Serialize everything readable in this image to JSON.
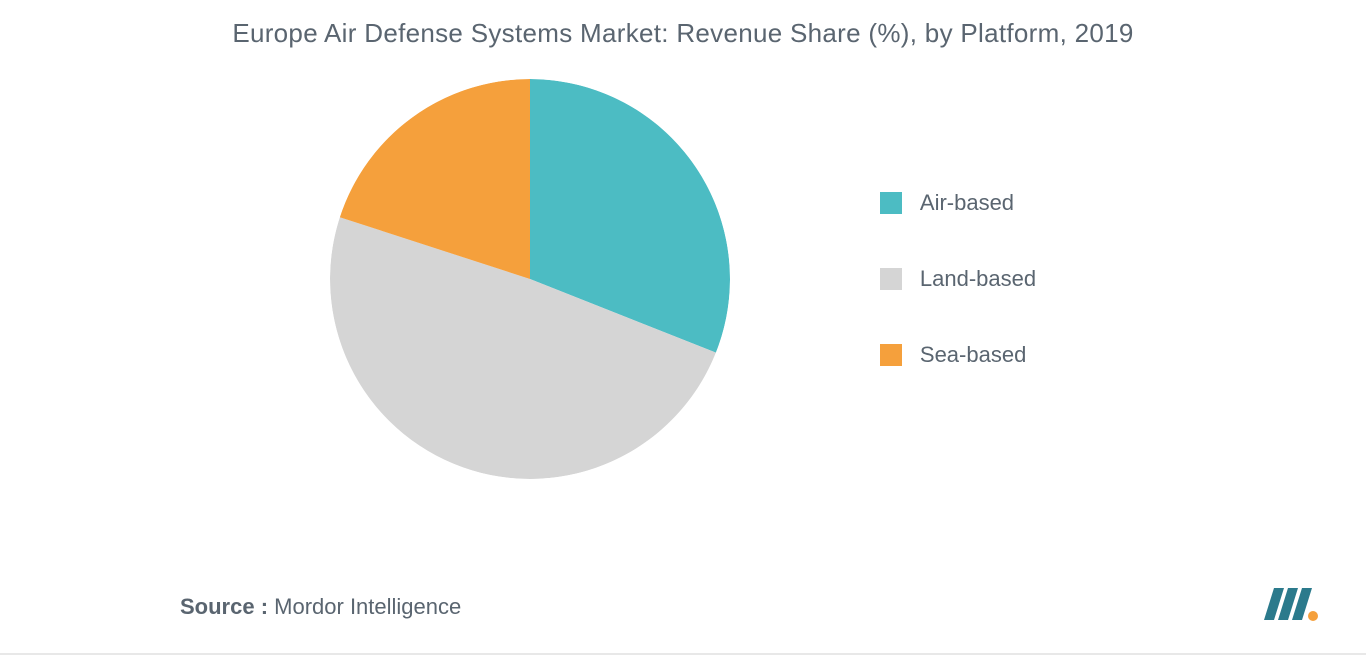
{
  "title": "Europe Air Defense Systems Market: Revenue Share (%), by Platform, 2019",
  "chart": {
    "type": "pie",
    "radius": 200,
    "background_color": "#ffffff",
    "slices": [
      {
        "label": "Air-based",
        "value": 31,
        "color": "#4cbcc3"
      },
      {
        "label": "Land-based",
        "value": 49,
        "color": "#d5d5d5"
      },
      {
        "label": "Sea-based",
        "value": 20,
        "color": "#f5a03c"
      }
    ],
    "start_angle_deg": 0
  },
  "legend": {
    "items": [
      {
        "label": "Air-based",
        "color": "#4cbcc3"
      },
      {
        "label": "Land-based",
        "color": "#d5d5d5"
      },
      {
        "label": "Sea-based",
        "color": "#f5a03c"
      }
    ],
    "swatch_size": 22,
    "label_fontsize": 22,
    "label_color": "#5a6570",
    "gap": 50
  },
  "source": {
    "label": "Source :",
    "value": " Mordor Intelligence",
    "fontsize": 22,
    "color": "#5a6570"
  },
  "logo": {
    "bar_color": "#2b7a8c",
    "dot_color": "#f5a03c"
  },
  "title_style": {
    "fontsize": 26,
    "color": "#5a6570",
    "weight": 500
  }
}
